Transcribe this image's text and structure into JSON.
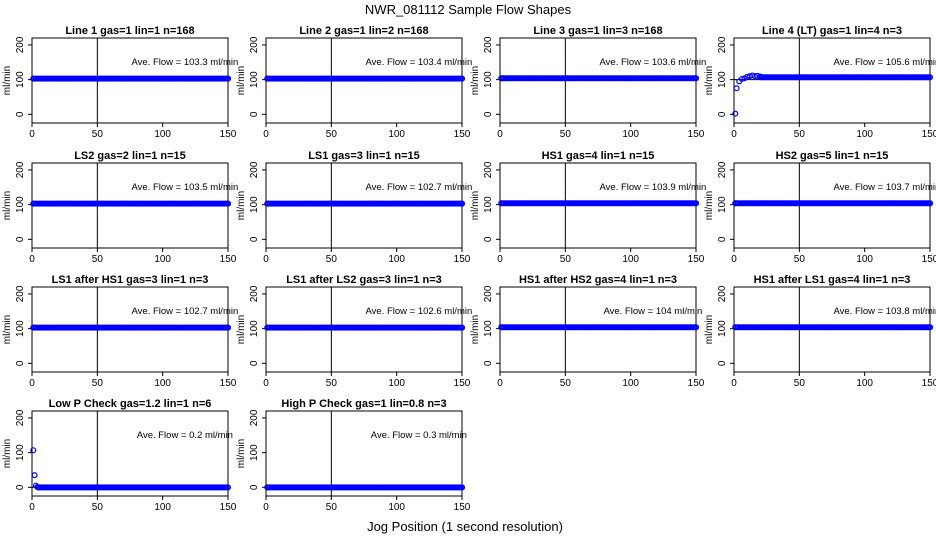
{
  "figure": {
    "title": "NWR_081112  Sample Flow Shapes",
    "xlabel": "Jog Position (1 second resolution)"
  },
  "chart_data": [
    {
      "type": "scatter",
      "title": "Line 1 gas=1 lin=1 n=168",
      "ylabel": "ml/min",
      "annotation": "Ave. Flow =  103.3  ml/min",
      "xlim": [
        0,
        150
      ],
      "ylim": [
        -25,
        220
      ],
      "xticks": [
        0,
        50,
        100,
        150
      ],
      "yticks": [
        0,
        100,
        200
      ],
      "vline": 50,
      "hline": 100,
      "series": [
        {
          "name": "flow",
          "color": "#0000ff",
          "x": [
            1,
            150
          ],
          "y": [
            103,
            103
          ],
          "fill_range": [
            1,
            150,
            103
          ]
        }
      ]
    },
    {
      "type": "scatter",
      "title": "Line 2 gas=1 lin=2 n=168",
      "ylabel": "ml/min",
      "annotation": "Ave. Flow =  103.4  ml/min",
      "xlim": [
        0,
        150
      ],
      "ylim": [
        -25,
        220
      ],
      "xticks": [
        0,
        50,
        100,
        150
      ],
      "yticks": [
        0,
        100,
        200
      ],
      "vline": 50,
      "hline": 100,
      "series": [
        {
          "name": "flow",
          "color": "#0000ff",
          "x": [
            1,
            150
          ],
          "y": [
            103,
            103
          ],
          "fill_range": [
            1,
            150,
            103
          ]
        }
      ]
    },
    {
      "type": "scatter",
      "title": "Line 3 gas=1 lin=3 n=168",
      "ylabel": "ml/min",
      "annotation": "Ave. Flow =  103.6  ml/min",
      "xlim": [
        0,
        150
      ],
      "ylim": [
        -25,
        220
      ],
      "xticks": [
        0,
        50,
        100,
        150
      ],
      "yticks": [
        0,
        100,
        200
      ],
      "vline": 50,
      "hline": 100,
      "series": [
        {
          "name": "flow",
          "color": "#0000ff",
          "x": [
            1,
            150
          ],
          "y": [
            104,
            104
          ],
          "fill_range": [
            1,
            150,
            104
          ]
        }
      ]
    },
    {
      "type": "scatter",
      "title": "Line 4 (LT) gas=1 lin=4 n=3",
      "ylabel": "ml/min",
      "annotation": "Ave. Flow =  105.6  ml/min",
      "xlim": [
        0,
        150
      ],
      "ylim": [
        -25,
        220
      ],
      "xticks": [
        0,
        50,
        100,
        150
      ],
      "yticks": [
        0,
        100,
        200
      ],
      "vline": 50,
      "hline": 100,
      "series": [
        {
          "name": "flow",
          "color": "#0000ff",
          "x": [
            1,
            2,
            4,
            6,
            8,
            10,
            12,
            14,
            16,
            18,
            20
          ],
          "y": [
            2,
            75,
            95,
            102,
            104,
            108,
            110,
            112,
            110,
            111,
            109
          ],
          "fill_range": [
            20,
            150,
            107
          ]
        }
      ]
    },
    {
      "type": "scatter",
      "title": "LS2 gas=2 lin=1 n=15",
      "ylabel": "ml/min",
      "annotation": "Ave. Flow =  103.5  ml/min",
      "xlim": [
        0,
        150
      ],
      "ylim": [
        -25,
        220
      ],
      "xticks": [
        0,
        50,
        100,
        150
      ],
      "yticks": [
        0,
        100,
        200
      ],
      "vline": 50,
      "hline": 100,
      "series": [
        {
          "name": "flow",
          "color": "#0000ff",
          "x": [
            1,
            150
          ],
          "y": [
            103,
            103
          ],
          "fill_range": [
            1,
            150,
            103
          ]
        }
      ]
    },
    {
      "type": "scatter",
      "title": "LS1 gas=3 lin=1 n=15",
      "ylabel": "ml/min",
      "annotation": "Ave. Flow =  102.7  ml/min",
      "xlim": [
        0,
        150
      ],
      "ylim": [
        -25,
        220
      ],
      "xticks": [
        0,
        50,
        100,
        150
      ],
      "yticks": [
        0,
        100,
        200
      ],
      "vline": 50,
      "hline": 100,
      "series": [
        {
          "name": "flow",
          "color": "#0000ff",
          "x": [
            1,
            150
          ],
          "y": [
            103,
            103
          ],
          "fill_range": [
            1,
            150,
            103
          ]
        }
      ]
    },
    {
      "type": "scatter",
      "title": "HS1 gas=4 lin=1 n=15",
      "ylabel": "ml/min",
      "annotation": "Ave. Flow =  103.9  ml/min",
      "xlim": [
        0,
        150
      ],
      "ylim": [
        -25,
        220
      ],
      "xticks": [
        0,
        50,
        100,
        150
      ],
      "yticks": [
        0,
        100,
        200
      ],
      "vline": 50,
      "hline": 100,
      "series": [
        {
          "name": "flow",
          "color": "#0000ff",
          "x": [
            1,
            150
          ],
          "y": [
            104,
            104
          ],
          "fill_range": [
            1,
            150,
            104
          ]
        }
      ]
    },
    {
      "type": "scatter",
      "title": "HS2 gas=5 lin=1 n=15",
      "ylabel": "ml/min",
      "annotation": "Ave. Flow =  103.7  ml/min",
      "xlim": [
        0,
        150
      ],
      "ylim": [
        -25,
        220
      ],
      "xticks": [
        0,
        50,
        100,
        150
      ],
      "yticks": [
        0,
        100,
        200
      ],
      "vline": 50,
      "hline": 100,
      "series": [
        {
          "name": "flow",
          "color": "#0000ff",
          "x": [
            1,
            150
          ],
          "y": [
            104,
            104
          ],
          "fill_range": [
            1,
            150,
            104
          ]
        }
      ]
    },
    {
      "type": "scatter",
      "title": "LS1 after HS1 gas=3 lin=1 n=3",
      "ylabel": "ml/min",
      "annotation": "Ave. Flow =  102.7  ml/min",
      "xlim": [
        0,
        150
      ],
      "ylim": [
        -25,
        220
      ],
      "xticks": [
        0,
        50,
        100,
        150
      ],
      "yticks": [
        0,
        100,
        200
      ],
      "vline": 50,
      "hline": 100,
      "series": [
        {
          "name": "flow",
          "color": "#0000ff",
          "x": [
            1,
            150
          ],
          "y": [
            103,
            103
          ],
          "fill_range": [
            1,
            150,
            103
          ]
        }
      ]
    },
    {
      "type": "scatter",
      "title": "LS1 after LS2 gas=3 lin=1 n=3",
      "ylabel": "ml/min",
      "annotation": "Ave. Flow =  102.6  ml/min",
      "xlim": [
        0,
        150
      ],
      "ylim": [
        -25,
        220
      ],
      "xticks": [
        0,
        50,
        100,
        150
      ],
      "yticks": [
        0,
        100,
        200
      ],
      "vline": 50,
      "hline": 100,
      "series": [
        {
          "name": "flow",
          "color": "#0000ff",
          "x": [
            1,
            150
          ],
          "y": [
            103,
            103
          ],
          "fill_range": [
            1,
            150,
            103
          ]
        }
      ]
    },
    {
      "type": "scatter",
      "title": "HS1 after HS2 gas=4 lin=1 n=3",
      "ylabel": "ml/min",
      "annotation": "Ave. Flow =  104  ml/min",
      "xlim": [
        0,
        150
      ],
      "ylim": [
        -25,
        220
      ],
      "xticks": [
        0,
        50,
        100,
        150
      ],
      "yticks": [
        0,
        100,
        200
      ],
      "vline": 50,
      "hline": 100,
      "series": [
        {
          "name": "flow",
          "color": "#0000ff",
          "x": [
            1,
            150
          ],
          "y": [
            104,
            104
          ],
          "fill_range": [
            1,
            150,
            104
          ]
        }
      ]
    },
    {
      "type": "scatter",
      "title": "HS1 after LS1 gas=4 lin=1 n=3",
      "ylabel": "ml/min",
      "annotation": "Ave. Flow =  103.8  ml/min",
      "xlim": [
        0,
        150
      ],
      "ylim": [
        -25,
        220
      ],
      "xticks": [
        0,
        50,
        100,
        150
      ],
      "yticks": [
        0,
        100,
        200
      ],
      "vline": 50,
      "hline": 100,
      "series": [
        {
          "name": "flow",
          "color": "#0000ff",
          "x": [
            1,
            150
          ],
          "y": [
            104,
            104
          ],
          "fill_range": [
            1,
            150,
            104
          ]
        }
      ]
    },
    {
      "type": "scatter",
      "title": "Low P Check gas=1.2 lin=1 n=6",
      "ylabel": "ml/min",
      "annotation": "Ave. Flow =  0.2  ml/min",
      "xlim": [
        0,
        150
      ],
      "ylim": [
        -25,
        220
      ],
      "xticks": [
        0,
        50,
        100,
        150
      ],
      "yticks": [
        0,
        100,
        200
      ],
      "vline": 50,
      "hline": 0,
      "series": [
        {
          "name": "flow",
          "color": "#0000ff",
          "x": [
            1,
            2,
            3,
            4,
            5
          ],
          "y": [
            107,
            35,
            5,
            1,
            0
          ],
          "fill_range": [
            5,
            150,
            0
          ]
        }
      ]
    },
    {
      "type": "scatter",
      "title": "High P Check gas=1 lin=0.8 n=3",
      "ylabel": "ml/min",
      "annotation": "Ave. Flow =  0.3  ml/min",
      "xlim": [
        0,
        150
      ],
      "ylim": [
        -25,
        220
      ],
      "xticks": [
        0,
        50,
        100,
        150
      ],
      "yticks": [
        0,
        100,
        200
      ],
      "vline": 50,
      "hline": 0,
      "series": [
        {
          "name": "flow",
          "color": "#0000ff",
          "x": [
            1,
            150
          ],
          "y": [
            0,
            0
          ],
          "fill_range": [
            1,
            150,
            0
          ]
        }
      ]
    }
  ]
}
